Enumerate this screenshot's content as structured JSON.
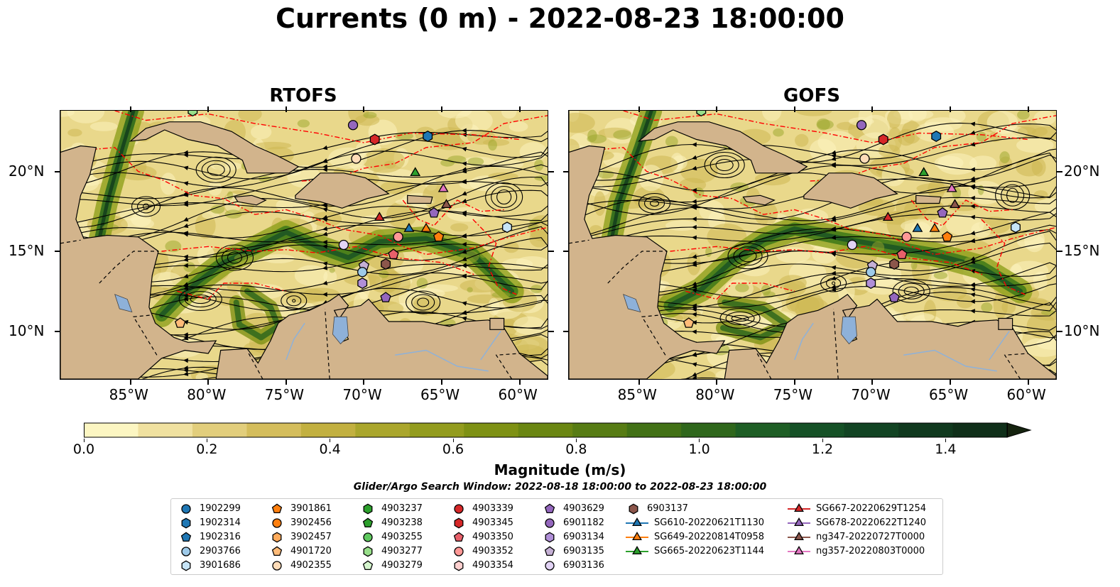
{
  "title": "Currents (0 m) - 2022-08-23 18:00:00",
  "maps": [
    {
      "id": "rtofs",
      "title": "RTOFS"
    },
    {
      "id": "gofs",
      "title": "GOFS"
    }
  ],
  "axes": {
    "lon_labels": [
      "85°W",
      "80°W",
      "75°W",
      "70°W",
      "65°W",
      "60°W"
    ],
    "lon_values": [
      -85,
      -80,
      -75,
      -70,
      -65,
      -60
    ],
    "lat_labels": [
      "20°N",
      "15°N",
      "10°N"
    ],
    "lat_values": [
      20,
      15,
      10
    ],
    "lon_range": [
      -89.5,
      -58.2
    ],
    "lat_range": [
      7.0,
      23.8
    ]
  },
  "colorbar": {
    "label": "Magnitude (m/s)",
    "tick_labels": [
      "0.0",
      "0.2",
      "0.4",
      "0.6",
      "0.8",
      "1.0",
      "1.2",
      "1.4"
    ],
    "tick_values": [
      0.0,
      0.2,
      0.4,
      0.6,
      0.8,
      1.0,
      1.2,
      1.4
    ],
    "range": [
      0.0,
      1.5
    ],
    "extend": "max",
    "colors": [
      "#fcf6c2",
      "#f0e1a0",
      "#e2ce7c",
      "#d4bd5c",
      "#c2b040",
      "#aaa62c",
      "#939c1e",
      "#7e9114",
      "#6a8612",
      "#577c14",
      "#427116",
      "#2f671c",
      "#1e5e25",
      "#155126",
      "#124423",
      "#10391e",
      "#0f2f19"
    ],
    "extend_color": "#15230f"
  },
  "search_window": "Glider/Argo Search Window: 2022-08-18 18:00:00 to 2022-08-23 18:00:00",
  "legend": [
    {
      "label": "1902299",
      "marker": "circle",
      "color": "#1f77b4"
    },
    {
      "label": "1902314",
      "marker": "hexagon",
      "color": "#1f77b4"
    },
    {
      "label": "1902316",
      "marker": "pentagon",
      "color": "#1f77b4"
    },
    {
      "label": "2903766",
      "marker": "circle",
      "color": "#9ecae9"
    },
    {
      "label": "3901686",
      "marker": "hexagon",
      "color": "#c6e4f7"
    },
    {
      "label": "3901861",
      "marker": "pentagon",
      "color": "#ff7f0e"
    },
    {
      "label": "3902456",
      "marker": "circle",
      "color": "#ff7f0e"
    },
    {
      "label": "3902457",
      "marker": "hexagon",
      "color": "#ffaa5a"
    },
    {
      "label": "4901720",
      "marker": "pentagon",
      "color": "#ffbb78"
    },
    {
      "label": "4902355",
      "marker": "circle",
      "color": "#ffdcb8"
    },
    {
      "label": "4903237",
      "marker": "hexagon",
      "color": "#2ca02c"
    },
    {
      "label": "4903238",
      "marker": "pentagon",
      "color": "#2ca02c"
    },
    {
      "label": "4903255",
      "marker": "circle",
      "color": "#5fc95f"
    },
    {
      "label": "4903277",
      "marker": "hexagon",
      "color": "#98df8a"
    },
    {
      "label": "4903279",
      "marker": "pentagon",
      "color": "#d4f5cd"
    },
    {
      "label": "4903339",
      "marker": "circle",
      "color": "#d62728"
    },
    {
      "label": "4903345",
      "marker": "hexagon",
      "color": "#d62728"
    },
    {
      "label": "4903350",
      "marker": "pentagon",
      "color": "#e8606a"
    },
    {
      "label": "4903352",
      "marker": "circle",
      "color": "#ff9896"
    },
    {
      "label": "4903354",
      "marker": "hexagon",
      "color": "#ffd0cf"
    },
    {
      "label": "4903629",
      "marker": "pentagon",
      "color": "#9467bd"
    },
    {
      "label": "6901182",
      "marker": "circle",
      "color": "#9467bd"
    },
    {
      "label": "6903134",
      "marker": "hexagon",
      "color": "#b08fd8"
    },
    {
      "label": "6903135",
      "marker": "pentagon",
      "color": "#c5b0d5"
    },
    {
      "label": "6903136",
      "marker": "circle",
      "color": "#e2d3f5"
    },
    {
      "label": "6903137",
      "marker": "hexagon",
      "color": "#8c564b"
    },
    {
      "label": "SG610-20220621T1130",
      "marker": "triangle-line",
      "color": "#1f77b4"
    },
    {
      "label": "SG649-20220814T0958",
      "marker": "triangle-line",
      "color": "#ff7f0e"
    },
    {
      "label": "SG665-20220623T1144",
      "marker": "triangle-line",
      "color": "#2ca02c"
    },
    {
      "label": "SG667-20220629T1254",
      "marker": "triangle-line",
      "color": "#d62728"
    },
    {
      "label": "SG678-20220622T1240",
      "marker": "triangle-line",
      "color": "#9467bd"
    },
    {
      "label": "ng347-20220727T0000",
      "marker": "triangle-line",
      "color": "#8c564b"
    },
    {
      "label": "ng357-20220803T0000",
      "marker": "triangle-line",
      "color": "#e377c2"
    }
  ],
  "observations": [
    {
      "lon": -81.0,
      "lat": 23.8,
      "marker": "hexagon",
      "color": "#98df8a"
    },
    {
      "lon": -70.7,
      "lat": 22.9,
      "marker": "circle",
      "color": "#9467bd"
    },
    {
      "lon": -69.3,
      "lat": 22.0,
      "marker": "hexagon",
      "color": "#d62728"
    },
    {
      "lon": -65.9,
      "lat": 22.2,
      "marker": "hexagon",
      "color": "#1f77b4"
    },
    {
      "lon": -70.5,
      "lat": 20.8,
      "marker": "circle",
      "color": "#ffdcb8"
    },
    {
      "lon": -66.7,
      "lat": 19.9,
      "marker": "triangle",
      "color": "#2ca02c"
    },
    {
      "lon": -64.9,
      "lat": 18.9,
      "marker": "triangle",
      "color": "#e377c2"
    },
    {
      "lon": -64.7,
      "lat": 17.9,
      "marker": "triangle",
      "color": "#8c564b"
    },
    {
      "lon": -65.5,
      "lat": 17.4,
      "marker": "pentagon",
      "color": "#9467bd"
    },
    {
      "lon": -69.0,
      "lat": 17.1,
      "marker": "triangle",
      "color": "#d62728"
    },
    {
      "lon": -67.1,
      "lat": 16.4,
      "marker": "triangle",
      "color": "#1f77b4"
    },
    {
      "lon": -66.0,
      "lat": 16.4,
      "marker": "triangle",
      "color": "#ff7f0e"
    },
    {
      "lon": -65.2,
      "lat": 15.9,
      "marker": "pentagon",
      "color": "#ff7f0e"
    },
    {
      "lon": -67.8,
      "lat": 15.9,
      "marker": "circle",
      "color": "#ff9896"
    },
    {
      "lon": -60.8,
      "lat": 16.5,
      "marker": "hexagon",
      "color": "#c6e4f7"
    },
    {
      "lon": -71.3,
      "lat": 15.4,
      "marker": "circle",
      "color": "#e2d3f5"
    },
    {
      "lon": -68.1,
      "lat": 14.8,
      "marker": "pentagon",
      "color": "#e8606a"
    },
    {
      "lon": -68.6,
      "lat": 14.2,
      "marker": "hexagon",
      "color": "#8c564b"
    },
    {
      "lon": -70.0,
      "lat": 14.1,
      "marker": "pentagon",
      "color": "#c5b0d5"
    },
    {
      "lon": -70.1,
      "lat": 13.7,
      "marker": "circle",
      "color": "#9ecae9"
    },
    {
      "lon": -70.1,
      "lat": 13.0,
      "marker": "hexagon",
      "color": "#b08fd8"
    },
    {
      "lon": -68.6,
      "lat": 12.1,
      "marker": "pentagon",
      "color": "#9467bd"
    },
    {
      "lon": -81.8,
      "lat": 10.5,
      "marker": "pentagon",
      "color": "#ffbb78"
    }
  ]
}
